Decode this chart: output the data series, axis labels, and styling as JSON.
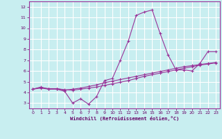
{
  "bg_color": "#c8eef0",
  "grid_color": "#ffffff",
  "line_color": "#993399",
  "marker_color": "#993399",
  "xlabel": "Windchill (Refroidissement éolien,°C)",
  "xlabel_color": "#660066",
  "tick_color": "#660066",
  "xlim": [
    -0.5,
    23.5
  ],
  "ylim": [
    2.5,
    12.5
  ],
  "xticks": [
    0,
    1,
    2,
    3,
    4,
    5,
    6,
    7,
    8,
    9,
    10,
    11,
    12,
    13,
    14,
    15,
    16,
    17,
    18,
    19,
    20,
    21,
    22,
    23
  ],
  "yticks": [
    3,
    4,
    5,
    6,
    7,
    8,
    9,
    10,
    11,
    12
  ],
  "line1_x": [
    0,
    1,
    2,
    3,
    4,
    5,
    6,
    7,
    8,
    9,
    10,
    11,
    12,
    13,
    14,
    15,
    16,
    17,
    18,
    19,
    20,
    21,
    22,
    23
  ],
  "line1_y": [
    4.3,
    4.4,
    4.3,
    4.3,
    4.1,
    3.0,
    3.4,
    2.9,
    3.6,
    5.1,
    5.3,
    7.0,
    8.8,
    11.2,
    11.5,
    11.7,
    9.5,
    7.5,
    6.1,
    6.1,
    6.0,
    6.7,
    7.8,
    7.8
  ],
  "line2_x": [
    0,
    1,
    2,
    3,
    4,
    5,
    6,
    7,
    8,
    9,
    10,
    11,
    12,
    13,
    14,
    15,
    16,
    17,
    18,
    19,
    20,
    21,
    22,
    23
  ],
  "line2_y": [
    4.3,
    4.5,
    4.3,
    4.35,
    4.2,
    4.3,
    4.4,
    4.55,
    4.7,
    4.9,
    5.05,
    5.2,
    5.35,
    5.5,
    5.65,
    5.8,
    5.95,
    6.1,
    6.25,
    6.4,
    6.5,
    6.6,
    6.7,
    6.8
  ],
  "line3_x": [
    0,
    1,
    2,
    3,
    4,
    5,
    6,
    7,
    8,
    9,
    10,
    11,
    12,
    13,
    14,
    15,
    16,
    17,
    18,
    19,
    20,
    21,
    22,
    23
  ],
  "line3_y": [
    4.3,
    4.45,
    4.35,
    4.35,
    4.25,
    4.2,
    4.3,
    4.4,
    4.5,
    4.65,
    4.8,
    4.95,
    5.1,
    5.3,
    5.5,
    5.65,
    5.8,
    5.95,
    6.1,
    6.25,
    6.4,
    6.55,
    6.65,
    6.75
  ]
}
